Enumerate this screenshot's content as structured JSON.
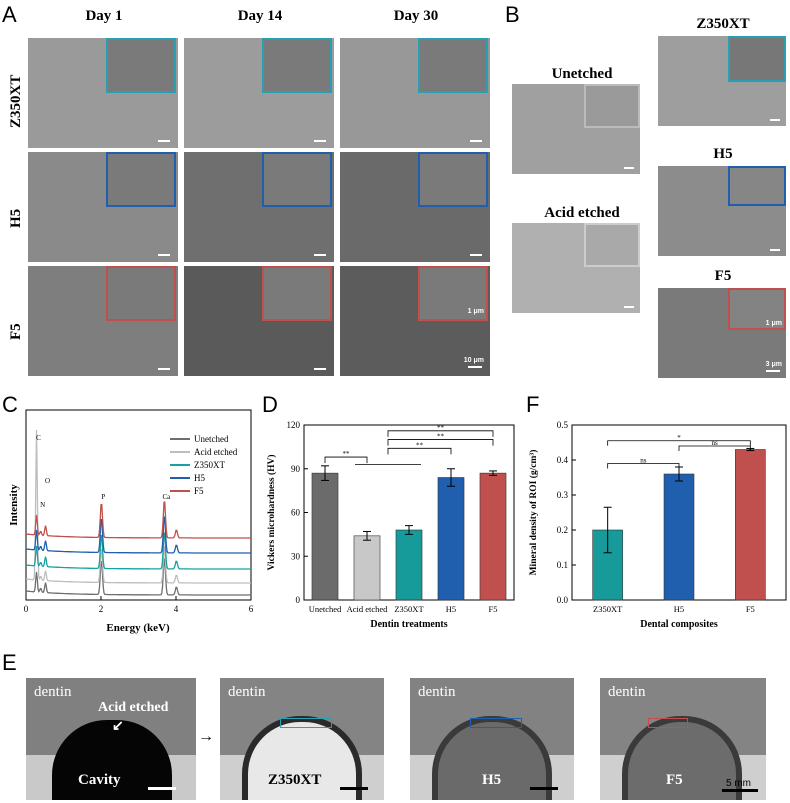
{
  "panels": {
    "A": "A",
    "B": "B",
    "C": "C",
    "D": "D",
    "E": "E",
    "F": "F"
  },
  "panelA": {
    "cols": [
      "Day 1",
      "Day 14",
      "Day 30"
    ],
    "rows": [
      "Z350XT",
      "H5",
      "F5"
    ],
    "scale_inset": "1 μm",
    "scale_main": "10 μm",
    "row_colors": {
      "Z350XT": "#2a9fb3",
      "H5": "#1f5fae",
      "F5": "#c0504d"
    }
  },
  "panelB": {
    "left": [
      "Unetched",
      "Acid etched"
    ],
    "right": [
      "Z350XT",
      "H5",
      "F5"
    ],
    "scale_inset": "1 μm",
    "scale_main": "3 μm"
  },
  "panelC": {
    "legend": [
      "Unetched",
      "Acid etched",
      "Z350XT",
      "H5",
      "F5"
    ],
    "legend_colors": [
      "#6e6e6e",
      "#bdbdbd",
      "#17a2a2",
      "#1f5fae",
      "#c0504d"
    ],
    "xlabel": "Energy (keV)",
    "ylabel": "Intensity",
    "xticks": [
      "0",
      "2",
      "4",
      "6"
    ],
    "peak_labels": [
      "C",
      "O",
      "N",
      "P",
      "Ca"
    ]
  },
  "panelE": {
    "dentin": "dentin",
    "acid": "Acid etched",
    "labels": [
      "Cavity",
      "Z350XT",
      "H5",
      "F5"
    ],
    "scale": "5 mm"
  },
  "chart_data": [
    {
      "type": "bar",
      "title": "",
      "categories": [
        "Unetched",
        "Acid etched",
        "Z350XT",
        "H5",
        "F5"
      ],
      "values": [
        87,
        44,
        48,
        84,
        87
      ],
      "errors": [
        5,
        3,
        3,
        6,
        1.5
      ],
      "colors": [
        "#6b6b6b",
        "#c8c8c8",
        "#169a9a",
        "#1f5fae",
        "#c0504d"
      ],
      "xlabel": "Dentin treatments",
      "ylabel": "Vickers microhardness (HV)",
      "ylim": [
        0,
        120
      ],
      "yticks": [
        "0",
        "30",
        "60",
        "90",
        "120"
      ],
      "significance": [
        "**",
        "**",
        "**",
        "**"
      ]
    },
    {
      "type": "bar",
      "title": "",
      "categories": [
        "Z350XT",
        "H5",
        "F5"
      ],
      "values": [
        0.2,
        0.36,
        0.43
      ],
      "errors": [
        0.065,
        0.02,
        0.003
      ],
      "colors": [
        "#169a9a",
        "#1f5fae",
        "#c0504d"
      ],
      "xlabel": "Dental composites",
      "ylabel": "Mineral density of ROI (g/cm³)",
      "ylim": [
        0,
        0.5
      ],
      "yticks": [
        "0.0",
        "0.1",
        "0.2",
        "0.3",
        "0.4",
        "0.5"
      ],
      "significance": [
        "ns",
        "*",
        "ns"
      ]
    }
  ]
}
